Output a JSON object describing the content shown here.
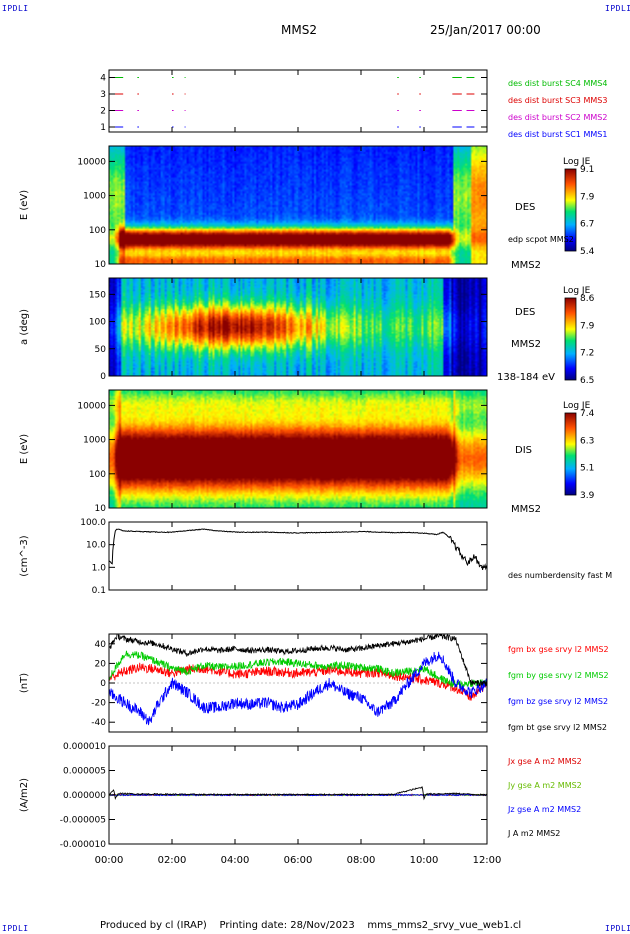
{
  "header": {
    "corner_left": "IPDLI",
    "corner_right": "IPDLI",
    "spacecraft": "MMS2",
    "date": "25/Jan/2017 00:00"
  },
  "footer": {
    "producer": "Produced by cl (IRAP)",
    "print_date": "Printing date: 28/Nov/2023",
    "filename": "mms_mms2_srvy_vue_web1.cl",
    "corner_left": "IPDLI",
    "corner_right": "IPDLI"
  },
  "chart_data": [
    {
      "id": "burst",
      "type": "line",
      "yticks": [
        "1",
        "2",
        "3",
        "4"
      ],
      "xlim": [
        0,
        12
      ],
      "series": [
        {
          "name": "des dist burst SC1 MMS1",
          "level": 1,
          "color": "#0000ff",
          "intervals": [
            [
              0.0,
              0.45
            ],
            [
              0.9,
              0.95
            ],
            [
              2.0,
              2.05
            ],
            [
              2.4,
              2.43
            ],
            [
              9.15,
              9.2
            ],
            [
              9.85,
              9.9
            ],
            [
              10.9,
              11.2
            ],
            [
              11.35,
              11.6
            ]
          ]
        },
        {
          "name": "des dist burst SC2 MMS2",
          "level": 2,
          "color": "#cc00cc",
          "intervals": [
            [
              0.0,
              0.45
            ],
            [
              0.9,
              0.95
            ],
            [
              2.0,
              2.05
            ],
            [
              2.4,
              2.43
            ],
            [
              9.15,
              9.2
            ],
            [
              9.85,
              9.9
            ],
            [
              10.9,
              11.2
            ],
            [
              11.35,
              11.6
            ]
          ]
        },
        {
          "name": "des dist burst SC3 MMS3",
          "level": 3,
          "color": "#dd0000",
          "intervals": [
            [
              0.0,
              0.45
            ],
            [
              0.9,
              0.95
            ],
            [
              2.0,
              2.05
            ],
            [
              2.4,
              2.43
            ],
            [
              9.15,
              9.2
            ],
            [
              9.85,
              9.9
            ],
            [
              10.9,
              11.2
            ],
            [
              11.35,
              11.6
            ]
          ]
        },
        {
          "name": "des dist burst SC4 MMS4",
          "level": 4,
          "color": "#00bb00",
          "intervals": [
            [
              0.0,
              0.45
            ],
            [
              0.9,
              0.95
            ],
            [
              2.0,
              2.05
            ],
            [
              2.4,
              2.43
            ],
            [
              9.15,
              9.2
            ],
            [
              9.85,
              9.9
            ],
            [
              10.9,
              11.2
            ],
            [
              11.35,
              11.6
            ]
          ]
        }
      ]
    },
    {
      "id": "des_energy",
      "type": "heatmap",
      "ylabel": "E (eV)",
      "yticks": [
        "10",
        "100",
        "1000",
        "10000"
      ],
      "ylim_log10": [
        1,
        4.45
      ],
      "colorbar": {
        "title": "Log JE",
        "ticks": [
          "9.1",
          "7.9",
          "6.7",
          "5.4"
        ]
      },
      "labels": [
        "DES",
        "edp scpot MMS2",
        "MMS2"
      ],
      "spacecraft_potential_log10": 2.0
    },
    {
      "id": "des_pitch",
      "type": "heatmap",
      "ylabel": "a (deg)",
      "yticks": [
        "0",
        "50",
        "100",
        "150"
      ],
      "ylim": [
        0,
        180
      ],
      "colorbar": {
        "title": "Log JE",
        "ticks": [
          "8.6",
          "7.9",
          "7.2",
          "6.5"
        ]
      },
      "labels": [
        "DES",
        "MMS2",
        "138-184 eV"
      ]
    },
    {
      "id": "dis_energy",
      "type": "heatmap",
      "ylabel": "E (eV)",
      "yticks": [
        "10",
        "100",
        "1000",
        "10000"
      ],
      "ylim_log10": [
        1,
        4.45
      ],
      "colorbar": {
        "title": "Log JE",
        "ticks": [
          "7.4",
          "6.3",
          "5.1",
          "3.9"
        ]
      },
      "labels": [
        "DIS",
        "MMS2"
      ]
    },
    {
      "id": "density",
      "type": "line",
      "ylabel": "(cm^-3)",
      "yticks": [
        "0.1",
        "1.0",
        "10.0",
        "100.0"
      ],
      "ylim_log10": [
        -1,
        2
      ],
      "series": [
        {
          "name": "des numberdensity fast M",
          "color": "#000000",
          "x": [
            0.0,
            0.1,
            0.15,
            0.2,
            0.25,
            0.35,
            0.5,
            1.0,
            1.5,
            2.0,
            2.5,
            3.0,
            3.5,
            4.0,
            4.5,
            5.0,
            5.5,
            6.0,
            6.5,
            7.0,
            7.5,
            8.0,
            8.5,
            9.0,
            9.5,
            10.0,
            10.2,
            10.4,
            10.6,
            10.8,
            11.0,
            11.2,
            11.4,
            11.6,
            11.8,
            12.0
          ],
          "y": [
            2.0,
            1.4,
            12.0,
            40.0,
            50.0,
            45.0,
            40.0,
            38.0,
            36.0,
            35.0,
            42.0,
            48.0,
            40.0,
            36.0,
            35.0,
            36.0,
            34.0,
            33.0,
            34.0,
            35.0,
            36.0,
            38.0,
            36.0,
            34.0,
            35.0,
            32.0,
            30.0,
            28.0,
            35.0,
            20.0,
            8.0,
            3.0,
            1.5,
            3.0,
            1.0,
            1.0
          ]
        }
      ]
    },
    {
      "id": "bfield",
      "type": "line",
      "ylabel": "(nT)",
      "yticks": [
        "-40",
        "-20",
        "0",
        "20",
        "40"
      ],
      "ylim": [
        -50,
        50
      ],
      "series": [
        {
          "name": "fgm bx gse srvy l2 MMS2",
          "color": "#ff0000",
          "x": [
            0.0,
            0.5,
            1.0,
            1.5,
            2.0,
            2.5,
            3.0,
            3.5,
            4.0,
            4.5,
            5.0,
            5.5,
            6.0,
            6.5,
            7.0,
            7.5,
            8.0,
            8.5,
            9.0,
            9.5,
            10.0,
            10.5,
            11.0,
            11.5,
            12.0
          ],
          "y": [
            5.0,
            12.0,
            16.0,
            14.0,
            10.0,
            14.0,
            15.0,
            12.0,
            9.0,
            10.0,
            12.0,
            11.0,
            10.0,
            11.0,
            13.0,
            12.0,
            10.0,
            11.0,
            8.0,
            6.0,
            3.0,
            0.0,
            -5.0,
            -15.0,
            0.0
          ]
        },
        {
          "name": "fgm by gse srvy l2 MMS2",
          "color": "#00cc00",
          "x": [
            0.0,
            0.5,
            1.0,
            1.5,
            2.0,
            2.5,
            3.0,
            3.5,
            4.0,
            4.5,
            5.0,
            5.5,
            6.0,
            6.5,
            7.0,
            7.5,
            8.0,
            8.5,
            9.0,
            9.5,
            10.0,
            10.5,
            11.0,
            11.5,
            12.0
          ],
          "y": [
            5.0,
            30.0,
            28.0,
            22.0,
            15.0,
            12.0,
            18.0,
            16.0,
            17.0,
            19.0,
            21.0,
            22.0,
            20.0,
            18.0,
            17.0,
            18.0,
            16.0,
            15.0,
            10.0,
            12.0,
            15.0,
            5.0,
            -2.0,
            0.0,
            0.0
          ]
        },
        {
          "name": "fgm bz gse srvy l2 MMS2",
          "color": "#0000ff",
          "x": [
            0.0,
            0.5,
            1.0,
            1.3,
            1.5,
            1.8,
            2.0,
            2.5,
            3.0,
            3.5,
            4.0,
            4.5,
            5.0,
            5.5,
            6.0,
            6.5,
            7.0,
            7.5,
            8.0,
            8.5,
            9.0,
            9.5,
            10.0,
            10.5,
            11.0,
            11.5,
            12.0
          ],
          "y": [
            -10.0,
            -20.0,
            -30.0,
            -40.0,
            -25.0,
            -10.0,
            0.0,
            -10.0,
            -25.0,
            -25.0,
            -20.0,
            -22.0,
            -20.0,
            -25.0,
            -22.0,
            -10.0,
            0.0,
            -10.0,
            -15.0,
            -30.0,
            -20.0,
            0.0,
            20.0,
            30.0,
            0.0,
            -10.0,
            0.0
          ]
        },
        {
          "name": "fgm bt gse srvy l2 MMS2",
          "color": "#000000",
          "x": [
            0.0,
            0.25,
            0.5,
            1.0,
            1.5,
            2.0,
            2.5,
            3.0,
            3.5,
            4.0,
            4.5,
            5.0,
            5.5,
            6.0,
            6.5,
            7.0,
            7.5,
            8.0,
            8.5,
            9.0,
            9.5,
            10.0,
            10.5,
            11.0,
            11.5,
            12.0
          ],
          "y": [
            35.0,
            48.0,
            45.0,
            42.0,
            40.0,
            35.0,
            30.0,
            35.0,
            33.0,
            35.0,
            33.0,
            34.0,
            32.0,
            33.0,
            35.0,
            36.0,
            34.0,
            35.0,
            38.0,
            40.0,
            42.0,
            45.0,
            48.0,
            45.0,
            0.0,
            0.0
          ]
        }
      ]
    },
    {
      "id": "current",
      "type": "line",
      "ylabel": "(A/m2)",
      "yticks": [
        "-0.000010",
        "-0.000005",
        "0.000000",
        "0.000005",
        "0.000010"
      ],
      "ylim": [
        -1e-05,
        1e-05
      ],
      "xticks": [
        "00:00",
        "02:00",
        "04:00",
        "06:00",
        "08:00",
        "10:00",
        "12:00"
      ],
      "xlim": [
        0,
        12
      ],
      "series": [
        {
          "name": "Jx gse A m2 MMS2",
          "color": "#dd0000",
          "x": [
            0,
            12
          ],
          "y": [
            0.0,
            0.0
          ]
        },
        {
          "name": "Jy gse A m2 MMS2",
          "color": "#66bb00",
          "x": [
            0,
            12
          ],
          "y": [
            0.0,
            0.0
          ]
        },
        {
          "name": "Jz gse A m2 MMS2",
          "color": "#0000ff",
          "x": [
            0,
            12
          ],
          "y": [
            0.0,
            0.0
          ]
        },
        {
          "name": "J A m2 MMS2",
          "color": "#000000",
          "x": [
            0.0,
            0.15,
            0.2,
            0.3,
            1.0,
            3.0,
            6.0,
            9.0,
            9.95,
            10.0,
            10.05,
            11.0,
            12.0
          ],
          "y": [
            0.0,
            1e-06,
            -6e-07,
            3e-07,
            2e-07,
            1e-07,
            1e-07,
            1e-07,
            1.6e-06,
            -8e-07,
            2e-07,
            3e-07,
            0.0
          ]
        }
      ]
    }
  ]
}
